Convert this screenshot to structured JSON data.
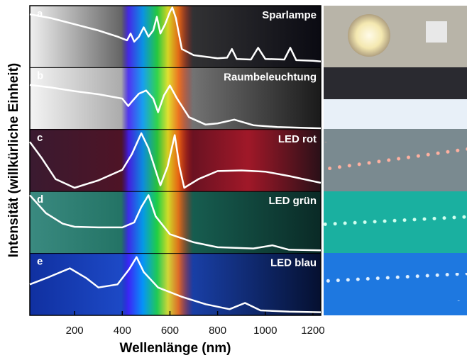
{
  "chart_data": {
    "type": "line",
    "xlabel": "Wellenlänge (nm)",
    "ylabel": "Intensität (willkürliche Einheit)",
    "xlim": [
      12,
      1233
    ],
    "xticks": [
      200,
      400,
      600,
      800,
      1000,
      1200
    ],
    "ylim": [
      0,
      1
    ],
    "color": "#ffffff",
    "series": [
      {
        "letter": "a",
        "name": "Sparlampe",
        "x": [
          12,
          100,
          200,
          300,
          380,
          420,
          435,
          450,
          470,
          490,
          510,
          530,
          545,
          560,
          580,
          600,
          610,
          625,
          650,
          700,
          800,
          840,
          860,
          880,
          940,
          970,
          1000,
          1080,
          1105,
          1130,
          1200,
          1233
        ],
        "values": [
          0.86,
          0.8,
          0.7,
          0.6,
          0.5,
          0.44,
          0.55,
          0.42,
          0.5,
          0.65,
          0.5,
          0.6,
          0.82,
          0.55,
          0.7,
          0.9,
          0.97,
          0.8,
          0.3,
          0.2,
          0.15,
          0.16,
          0.3,
          0.14,
          0.13,
          0.32,
          0.14,
          0.13,
          0.32,
          0.12,
          0.11,
          0.1
        ]
      },
      {
        "letter": "b",
        "name": "Raumbeleuchtung",
        "x": [
          12,
          100,
          200,
          300,
          400,
          425,
          440,
          470,
          500,
          530,
          550,
          575,
          600,
          630,
          680,
          750,
          800,
          870,
          950,
          1050,
          1233
        ],
        "values": [
          0.72,
          0.68,
          0.62,
          0.57,
          0.5,
          0.38,
          0.45,
          0.58,
          0.63,
          0.5,
          0.28,
          0.55,
          0.71,
          0.5,
          0.2,
          0.08,
          0.1,
          0.16,
          0.07,
          0.04,
          0.02
        ]
      },
      {
        "letter": "c",
        "name": "LED rot",
        "x": [
          12,
          60,
          120,
          200,
          300,
          400,
          440,
          480,
          510,
          560,
          590,
          620,
          640,
          660,
          720,
          800,
          900,
          1000,
          1100,
          1233
        ],
        "values": [
          0.8,
          0.55,
          0.2,
          0.06,
          0.18,
          0.35,
          0.6,
          0.94,
          0.7,
          0.1,
          0.4,
          0.91,
          0.4,
          0.06,
          0.2,
          0.33,
          0.34,
          0.32,
          0.25,
          0.14
        ]
      },
      {
        "letter": "d",
        "name": "LED grün",
        "x": [
          12,
          80,
          150,
          200,
          300,
          400,
          450,
          480,
          510,
          540,
          600,
          700,
          800,
          950,
          1030,
          1100,
          1233
        ],
        "values": [
          0.94,
          0.65,
          0.48,
          0.43,
          0.42,
          0.42,
          0.5,
          0.75,
          0.94,
          0.6,
          0.31,
          0.18,
          0.1,
          0.08,
          0.13,
          0.06,
          0.05
        ]
      },
      {
        "letter": "e",
        "name": "LED blau",
        "x": [
          12,
          80,
          180,
          250,
          300,
          380,
          430,
          460,
          490,
          550,
          650,
          750,
          850,
          915,
          980,
          1100,
          1233
        ],
        "values": [
          0.5,
          0.6,
          0.76,
          0.6,
          0.45,
          0.5,
          0.75,
          0.94,
          0.7,
          0.45,
          0.3,
          0.18,
          0.1,
          0.2,
          0.08,
          0.06,
          0.05
        ]
      }
    ]
  }
}
